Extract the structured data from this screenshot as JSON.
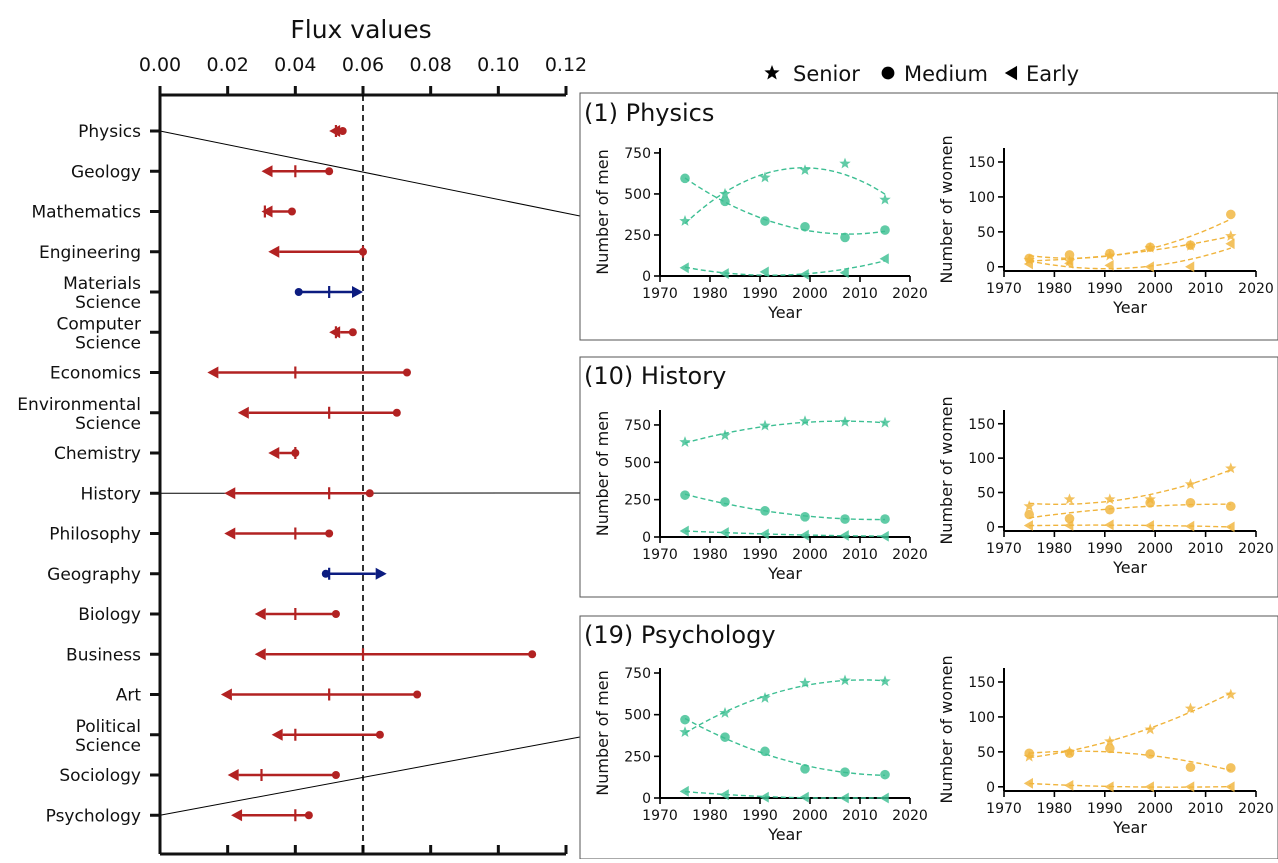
{
  "colors": {
    "negative": "#b22222",
    "positive": "#0c1c80",
    "men": "#3dbf93",
    "women": "#f0b43c",
    "axis": "#111111"
  },
  "legend": {
    "items": [
      {
        "label": "Senior",
        "marker": "star"
      },
      {
        "label": "Medium",
        "marker": "circle"
      },
      {
        "label": "Early",
        "marker": "triangle-left"
      }
    ]
  },
  "chart_data": [
    {
      "type": "scatter",
      "subtype": "arrow-range",
      "xlabel": "Flux values",
      "xlim": [
        0.0,
        0.12
      ],
      "xticks": [
        "0.00",
        "0.02",
        "0.04",
        "0.06",
        "0.08",
        "0.10",
        "0.12"
      ],
      "reference_line": 0.06,
      "grid": false,
      "rows": [
        {
          "label": "Physics",
          "start": 0.054,
          "mid": 0.052,
          "end": 0.05,
          "direction": "left",
          "color_key": "negative"
        },
        {
          "label": "Geology",
          "start": 0.05,
          "mid": 0.04,
          "end": 0.03,
          "direction": "left",
          "color_key": "negative"
        },
        {
          "label": "Mathematics",
          "start": 0.039,
          "mid": 0.031,
          "end": 0.03,
          "direction": "left",
          "color_key": "negative"
        },
        {
          "label": "Engineering",
          "start": 0.06,
          "mid": 0.06,
          "end": 0.032,
          "direction": "left",
          "color_key": "negative"
        },
        {
          "label": "Materials Science",
          "start": 0.041,
          "mid": 0.05,
          "end": 0.06,
          "direction": "right",
          "color_key": "positive"
        },
        {
          "label": "Computer Science",
          "start": 0.057,
          "mid": 0.052,
          "end": 0.05,
          "direction": "left",
          "color_key": "negative"
        },
        {
          "label": "Economics",
          "start": 0.073,
          "mid": 0.04,
          "end": 0.014,
          "direction": "left",
          "color_key": "negative"
        },
        {
          "label": "Environmental Science",
          "start": 0.07,
          "mid": 0.05,
          "end": 0.023,
          "direction": "left",
          "color_key": "negative"
        },
        {
          "label": "Chemistry",
          "start": 0.04,
          "mid": 0.04,
          "end": 0.032,
          "direction": "left",
          "color_key": "negative"
        },
        {
          "label": "History",
          "start": 0.062,
          "mid": 0.05,
          "end": 0.019,
          "direction": "left",
          "color_key": "negative"
        },
        {
          "label": "Philosophy",
          "start": 0.05,
          "mid": 0.04,
          "end": 0.019,
          "direction": "left",
          "color_key": "negative"
        },
        {
          "label": "Geography",
          "start": 0.049,
          "mid": 0.05,
          "end": 0.067,
          "direction": "right",
          "color_key": "positive"
        },
        {
          "label": "Biology",
          "start": 0.052,
          "mid": 0.04,
          "end": 0.028,
          "direction": "left",
          "color_key": "negative"
        },
        {
          "label": "Business",
          "start": 0.11,
          "mid": 0.06,
          "end": 0.028,
          "direction": "left",
          "color_key": "negative"
        },
        {
          "label": "Art",
          "start": 0.076,
          "mid": 0.05,
          "end": 0.018,
          "direction": "left",
          "color_key": "negative"
        },
        {
          "label": "Political Science",
          "start": 0.065,
          "mid": 0.04,
          "end": 0.033,
          "direction": "left",
          "color_key": "negative"
        },
        {
          "label": "Sociology",
          "start": 0.052,
          "mid": 0.03,
          "end": 0.02,
          "direction": "left",
          "color_key": "negative"
        },
        {
          "label": "Psychology",
          "start": 0.044,
          "mid": 0.04,
          "end": 0.021,
          "direction": "left",
          "color_key": "negative"
        }
      ]
    },
    {
      "type": "scatter",
      "title": "(1) Physics",
      "panels": [
        {
          "ylabel": "Number of men",
          "xlabel": "Year",
          "xlim": [
            1970,
            2020
          ],
          "ylim": [
            0,
            780
          ],
          "yticks": [
            0,
            250,
            500,
            750
          ],
          "xticks": [
            1970,
            1980,
            1990,
            2000,
            2010,
            2020
          ],
          "color_key": "men",
          "x": [
            1975,
            1983,
            1991,
            1999,
            2007,
            2015
          ],
          "series": [
            {
              "name": "Senior",
              "marker": "star",
              "values": [
                335,
                500,
                600,
                645,
                685,
                465
              ]
            },
            {
              "name": "Medium",
              "marker": "circle",
              "values": [
                595,
                455,
                335,
                300,
                235,
                280
              ]
            },
            {
              "name": "Early",
              "marker": "triangle-left",
              "values": [
                50,
                15,
                25,
                10,
                20,
                105
              ]
            }
          ]
        },
        {
          "ylabel": "Number of women",
          "xlabel": "Year",
          "xlim": [
            1970,
            2020
          ],
          "ylim": [
            -6,
            170
          ],
          "yticks": [
            0,
            50,
            100,
            150
          ],
          "xticks": [
            1970,
            1980,
            1990,
            2000,
            2010,
            2020
          ],
          "color_key": "women",
          "x": [
            1975,
            1983,
            1991,
            1999,
            2007,
            2015
          ],
          "series": [
            {
              "name": "Senior",
              "marker": "star",
              "values": [
                10,
                8,
                16,
                27,
                30,
                44
              ]
            },
            {
              "name": "Medium",
              "marker": "circle",
              "values": [
                12,
                17,
                19,
                28,
                31,
                75
              ]
            },
            {
              "name": "Early",
              "marker": "triangle-left",
              "values": [
                4,
                5,
                2,
                0,
                0,
                33
              ]
            }
          ]
        }
      ]
    },
    {
      "type": "scatter",
      "title": "(10) History",
      "panels": [
        {
          "ylabel": "Number of men",
          "xlabel": "Year",
          "xlim": [
            1970,
            2020
          ],
          "ylim": [
            0,
            850
          ],
          "yticks": [
            0,
            250,
            500,
            750
          ],
          "xticks": [
            1970,
            1980,
            1990,
            2000,
            2010,
            2020
          ],
          "color_key": "men",
          "x": [
            1975,
            1983,
            1991,
            1999,
            2007,
            2015
          ],
          "series": [
            {
              "name": "Senior",
              "marker": "star",
              "values": [
                635,
                680,
                745,
                775,
                770,
                765
              ]
            },
            {
              "name": "Medium",
              "marker": "circle",
              "values": [
                280,
                235,
                175,
                135,
                120,
                120
              ]
            },
            {
              "name": "Early",
              "marker": "triangle-left",
              "values": [
                40,
                30,
                20,
                12,
                10,
                5
              ]
            }
          ]
        },
        {
          "ylabel": "Number of women",
          "xlabel": "Year",
          "xlim": [
            1970,
            2020
          ],
          "ylim": [
            -6,
            170
          ],
          "yticks": [
            0,
            50,
            100,
            150
          ],
          "xticks": [
            1970,
            1980,
            1990,
            2000,
            2010,
            2020
          ],
          "color_key": "women",
          "x": [
            1975,
            1983,
            1991,
            1999,
            2007,
            2015
          ],
          "series": [
            {
              "name": "Senior",
              "marker": "star",
              "values": [
                30,
                40,
                40,
                40,
                62,
                85
              ]
            },
            {
              "name": "Medium",
              "marker": "circle",
              "values": [
                18,
                12,
                25,
                35,
                35,
                30
              ]
            },
            {
              "name": "Early",
              "marker": "triangle-left",
              "values": [
                2,
                2,
                3,
                2,
                1,
                0
              ]
            }
          ]
        }
      ]
    },
    {
      "type": "scatter",
      "title": "(19) Psychology",
      "panels": [
        {
          "ylabel": "Number of men",
          "xlabel": "Year",
          "xlim": [
            1970,
            2020
          ],
          "ylim": [
            0,
            780
          ],
          "yticks": [
            0,
            250,
            500,
            750
          ],
          "xticks": [
            1970,
            1980,
            1990,
            2000,
            2010,
            2020
          ],
          "color_key": "men",
          "x": [
            1975,
            1983,
            1991,
            1999,
            2007,
            2015
          ],
          "series": [
            {
              "name": "Senior",
              "marker": "star",
              "values": [
                395,
                510,
                600,
                690,
                705,
                700
              ]
            },
            {
              "name": "Medium",
              "marker": "circle",
              "values": [
                470,
                365,
                280,
                175,
                155,
                140
              ]
            },
            {
              "name": "Early",
              "marker": "triangle-left",
              "values": [
                40,
                20,
                5,
                5,
                0,
                0
              ]
            }
          ]
        },
        {
          "ylabel": "Number of women",
          "xlabel": "Year",
          "xlim": [
            1970,
            2020
          ],
          "ylim": [
            -6,
            170
          ],
          "yticks": [
            0,
            50,
            100,
            150
          ],
          "xticks": [
            1970,
            1980,
            1990,
            2000,
            2010,
            2020
          ],
          "color_key": "women",
          "x": [
            1975,
            1983,
            1991,
            1999,
            2007,
            2015
          ],
          "series": [
            {
              "name": "Senior",
              "marker": "star",
              "values": [
                43,
                50,
                65,
                82,
                112,
                132
              ]
            },
            {
              "name": "Medium",
              "marker": "circle",
              "values": [
                48,
                48,
                55,
                47,
                28,
                27
              ]
            },
            {
              "name": "Early",
              "marker": "triangle-left",
              "values": [
                5,
                2,
                0,
                0,
                0,
                0
              ]
            }
          ]
        }
      ]
    }
  ]
}
